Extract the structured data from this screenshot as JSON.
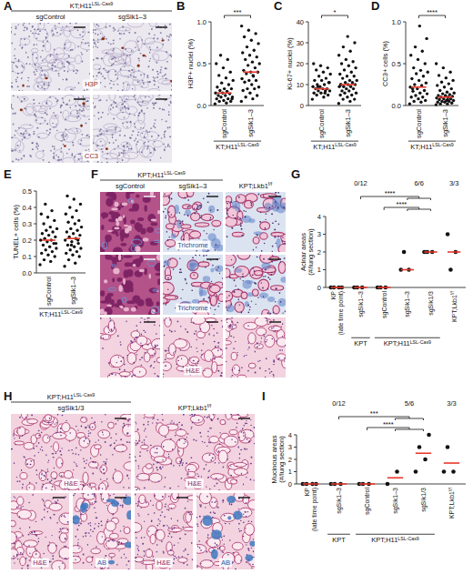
{
  "images": [
    {
      "letter": "A",
      "header": {
        "base": "KT;H11",
        "sup": "LSL-Cas9"
      },
      "columns": [
        "sgControl",
        "sgSik1–3"
      ],
      "row_labels": [
        "H3P",
        "CC3"
      ]
    },
    {
      "letter": "F",
      "header": {
        "base": "KPT;H11",
        "sup": "LSL-Cas9"
      },
      "columns": [
        "sgControl",
        "sgSik1–3",
        {
          "base": "KPT;Lkb1",
          "sup": "f/f"
        }
      ],
      "row_labels": [
        "Trichrome",
        "Trichrome",
        "H&E"
      ]
    },
    {
      "letter": "H",
      "header": {
        "base": "KPT;H11",
        "sup": "LSL-Cas9"
      },
      "columns": [
        "sgSik1/3",
        {
          "base": "KPT;Lkb1",
          "sup": "f/f"
        }
      ],
      "top_labels": [
        "H&E",
        "H&E"
      ],
      "bottom_labels": [
        "H&E",
        "AB",
        "H&E",
        "AB"
      ]
    }
  ],
  "chart_data": [
    {
      "letter": "B",
      "type": "strip",
      "y_label": "H3P+ nuclei (%)",
      "ylim": [
        0,
        1
      ],
      "yticks": [
        {
          "value": 0,
          "label": "0.0"
        },
        0.5,
        {
          "value": 1,
          "label": "1.0"
        }
      ],
      "categories": [
        "sgControl",
        "sgSik1–3"
      ],
      "color": "#111111",
      "values": [
        [
          0.02,
          0.03,
          0.05,
          0.05,
          0.06,
          0.08,
          0.08,
          0.1,
          0.1,
          0.12,
          0.12,
          0.14,
          0.15,
          0.15,
          0.17,
          0.18,
          0.2,
          0.2,
          0.22,
          0.25,
          0.27,
          0.3,
          0.33,
          0.36,
          0.4,
          0.45,
          0.5,
          0.55,
          0.6,
          0.08
        ],
        [
          0.05,
          0.08,
          0.1,
          0.12,
          0.15,
          0.18,
          0.2,
          0.2,
          0.22,
          0.25,
          0.28,
          0.3,
          0.3,
          0.32,
          0.35,
          0.38,
          0.4,
          0.4,
          0.42,
          0.45,
          0.48,
          0.5,
          0.52,
          0.55,
          0.58,
          0.6,
          0.63,
          0.66,
          0.7,
          0.74,
          0.78,
          0.82,
          0.86,
          0.9,
          0.95,
          0.36
        ]
      ],
      "center": [
        0.15,
        0.4
      ],
      "annotations": [
        {
          "text": "***",
          "from": [
            0
          ],
          "to": [
            1
          ]
        }
      ],
      "groups": [
        {
          "label": {
            "base": "KT;H11",
            "sup": "LSL-Cas9"
          },
          "from": 0,
          "to": 1
        }
      ]
    },
    {
      "letter": "C",
      "type": "strip",
      "y_label": "Ki-67+ nuclei (%)",
      "ylim": [
        0,
        40
      ],
      "yticks": [
        0,
        10,
        20,
        30,
        40
      ],
      "categories": [
        "sgControl",
        "sgSik1–3"
      ],
      "color": "#111111",
      "values": [
        [
          3,
          4,
          5,
          5,
          6,
          6,
          7,
          7,
          7,
          8,
          8,
          8,
          9,
          9,
          10,
          10,
          11,
          12,
          12,
          13,
          14,
          15,
          16,
          17,
          18,
          19,
          20,
          6,
          9,
          11
        ],
        [
          1,
          2,
          3,
          3,
          4,
          5,
          5,
          6,
          6,
          7,
          7,
          8,
          8,
          9,
          9,
          9,
          10,
          10,
          10,
          11,
          11,
          12,
          12,
          13,
          14,
          14,
          15,
          16,
          17,
          18,
          19,
          20,
          21,
          22,
          24,
          26,
          28,
          30,
          33,
          10
        ]
      ],
      "center": [
        8,
        10
      ],
      "annotations": [
        {
          "text": "*",
          "from": [
            0
          ],
          "to": [
            1
          ]
        }
      ],
      "groups": [
        {
          "label": {
            "base": "KT;H11",
            "sup": "LSL-Cas9"
          },
          "from": 0,
          "to": 1
        }
      ]
    },
    {
      "letter": "D",
      "type": "strip",
      "y_label": "CC3+ cells (%)",
      "ylim": [
        0,
        1
      ],
      "yticks": [
        {
          "value": 0,
          "label": "0.0"
        },
        0.5,
        {
          "value": 1,
          "label": "1.0"
        }
      ],
      "categories": [
        "sgControl",
        "sgSik1–3"
      ],
      "color": "#111111",
      "values": [
        [
          0.02,
          0.04,
          0.05,
          0.06,
          0.08,
          0.1,
          0.1,
          0.12,
          0.14,
          0.15,
          0.17,
          0.18,
          0.2,
          0.22,
          0.24,
          0.25,
          0.27,
          0.3,
          0.32,
          0.35,
          0.38,
          0.4,
          0.42,
          0.45,
          0.5,
          0.55,
          0.6,
          0.65,
          0.7,
          0.8,
          0.95,
          0.2
        ],
        [
          0.01,
          0.02,
          0.02,
          0.03,
          0.04,
          0.04,
          0.05,
          0.05,
          0.06,
          0.06,
          0.07,
          0.08,
          0.08,
          0.09,
          0.1,
          0.1,
          0.11,
          0.12,
          0.12,
          0.13,
          0.14,
          0.15,
          0.16,
          0.18,
          0.2,
          0.22,
          0.24,
          0.26,
          0.28,
          0.3,
          0.33,
          0.36,
          0.4,
          0.45,
          0.5,
          0.07
        ]
      ],
      "center": [
        0.22,
        0.1
      ],
      "annotations": [
        {
          "text": "****",
          "from": [
            0
          ],
          "to": [
            1
          ]
        }
      ],
      "groups": [
        {
          "label": {
            "base": "KT;H11",
            "sup": "LSL-Cas9"
          },
          "from": 0,
          "to": 1
        }
      ]
    },
    {
      "letter": "E",
      "type": "strip",
      "y_label": "TUNEL+ cells (%)",
      "ylim": [
        0,
        0.5
      ],
      "yticks": [
        {
          "value": 0,
          "label": "0.0"
        },
        0.1,
        0.2,
        0.3,
        0.4,
        0.5
      ],
      "categories": [
        "sgControl",
        "sgSik1–3"
      ],
      "color": "#111111",
      "values": [
        [
          0.05,
          0.07,
          0.08,
          0.1,
          0.11,
          0.12,
          0.13,
          0.14,
          0.15,
          0.16,
          0.17,
          0.18,
          0.19,
          0.2,
          0.2,
          0.21,
          0.22,
          0.23,
          0.24,
          0.25,
          0.26,
          0.27,
          0.28,
          0.3,
          0.32,
          0.34,
          0.36,
          0.38,
          0.42,
          0.18
        ],
        [
          0.04,
          0.06,
          0.08,
          0.1,
          0.11,
          0.12,
          0.13,
          0.14,
          0.15,
          0.16,
          0.17,
          0.18,
          0.19,
          0.2,
          0.21,
          0.22,
          0.23,
          0.24,
          0.25,
          0.26,
          0.27,
          0.28,
          0.3,
          0.31,
          0.32,
          0.34,
          0.36,
          0.38,
          0.4,
          0.42,
          0.45,
          0.47,
          0.2,
          0.17
        ]
      ],
      "center": [
        0.2,
        0.21
      ],
      "groups": [
        {
          "label": {
            "base": "KT;H11",
            "sup": "LSL-Cas9"
          },
          "from": 0,
          "to": 1
        }
      ]
    },
    {
      "letter": "G",
      "type": "strip",
      "y_label": "Acinar areas (#/lung section)",
      "ylim": [
        0,
        4
      ],
      "yticks": [
        0,
        1,
        2,
        3,
        4
      ],
      "categories": [
        "KP (late time point)",
        "sgSik1–3",
        "sgControl",
        "sgSik1–3",
        "sgSik1/3",
        {
          "base": "KPT;Lkb1",
          "sup": "f/f"
        }
      ],
      "color": "#111111",
      "values": [
        [
          0,
          0,
          0,
          0
        ],
        [
          0,
          0,
          0
        ],
        [
          0,
          0,
          0
        ],
        [
          1,
          1,
          2
        ],
        [
          2,
          2,
          2
        ],
        [
          3,
          2,
          1
        ]
      ],
      "center": [
        0,
        0,
        0,
        1,
        2,
        2
      ],
      "annotations": [
        {
          "text": "0/12",
          "over": [
            0,
            1,
            2
          ]
        },
        {
          "text": "6/6",
          "over": [
            3,
            4
          ]
        },
        {
          "text": "3/3",
          "over": [
            5
          ]
        },
        {
          "text": "****",
          "from": [
            1
          ],
          "to": [
            3,
            4
          ]
        },
        {
          "text": "****",
          "from": [
            2
          ],
          "to": [
            3,
            4
          ]
        }
      ],
      "groups": [
        {
          "label": "KPT",
          "from": 1,
          "to": 1
        },
        {
          "label": {
            "base": "KPT;H11",
            "sup": "LSL-Cas9"
          },
          "from": 2,
          "to": 4
        }
      ]
    },
    {
      "letter": "I",
      "type": "strip",
      "y_label": "Mucinous areas (#/lung section)",
      "ylim": [
        0,
        4
      ],
      "yticks": [
        0,
        1,
        2,
        3,
        4
      ],
      "categories": [
        "KP (late time point)",
        "sgSik1–3",
        "sgControl",
        "sgSik1–3",
        "sgSik1/3",
        {
          "base": "KPT;Lkb1",
          "sup": "f/f"
        }
      ],
      "color": "#111111",
      "values": [
        [
          0,
          0,
          0,
          0
        ],
        [
          0,
          0,
          0
        ],
        [
          0,
          0,
          0
        ],
        [
          0,
          1
        ],
        [
          1,
          2,
          3,
          4
        ],
        [
          1,
          1,
          3
        ]
      ],
      "center": [
        0,
        0,
        0,
        0.5,
        2.5,
        1.7
      ],
      "annotations": [
        {
          "text": "0/12",
          "over": [
            0,
            1,
            2
          ]
        },
        {
          "text": "5/6",
          "over": [
            3,
            4
          ]
        },
        {
          "text": "3/3",
          "over": [
            5
          ]
        },
        {
          "text": "***",
          "from": [
            1
          ],
          "to": [
            3,
            4
          ]
        },
        {
          "text": "****",
          "from": [
            2
          ],
          "to": [
            3,
            4
          ]
        }
      ],
      "groups": [
        {
          "label": "KPT",
          "from": 1,
          "to": 1
        },
        {
          "label": {
            "base": "KPT;H11",
            "sup": "LSL-Cas9"
          },
          "from": 2,
          "to": 4
        }
      ]
    }
  ]
}
